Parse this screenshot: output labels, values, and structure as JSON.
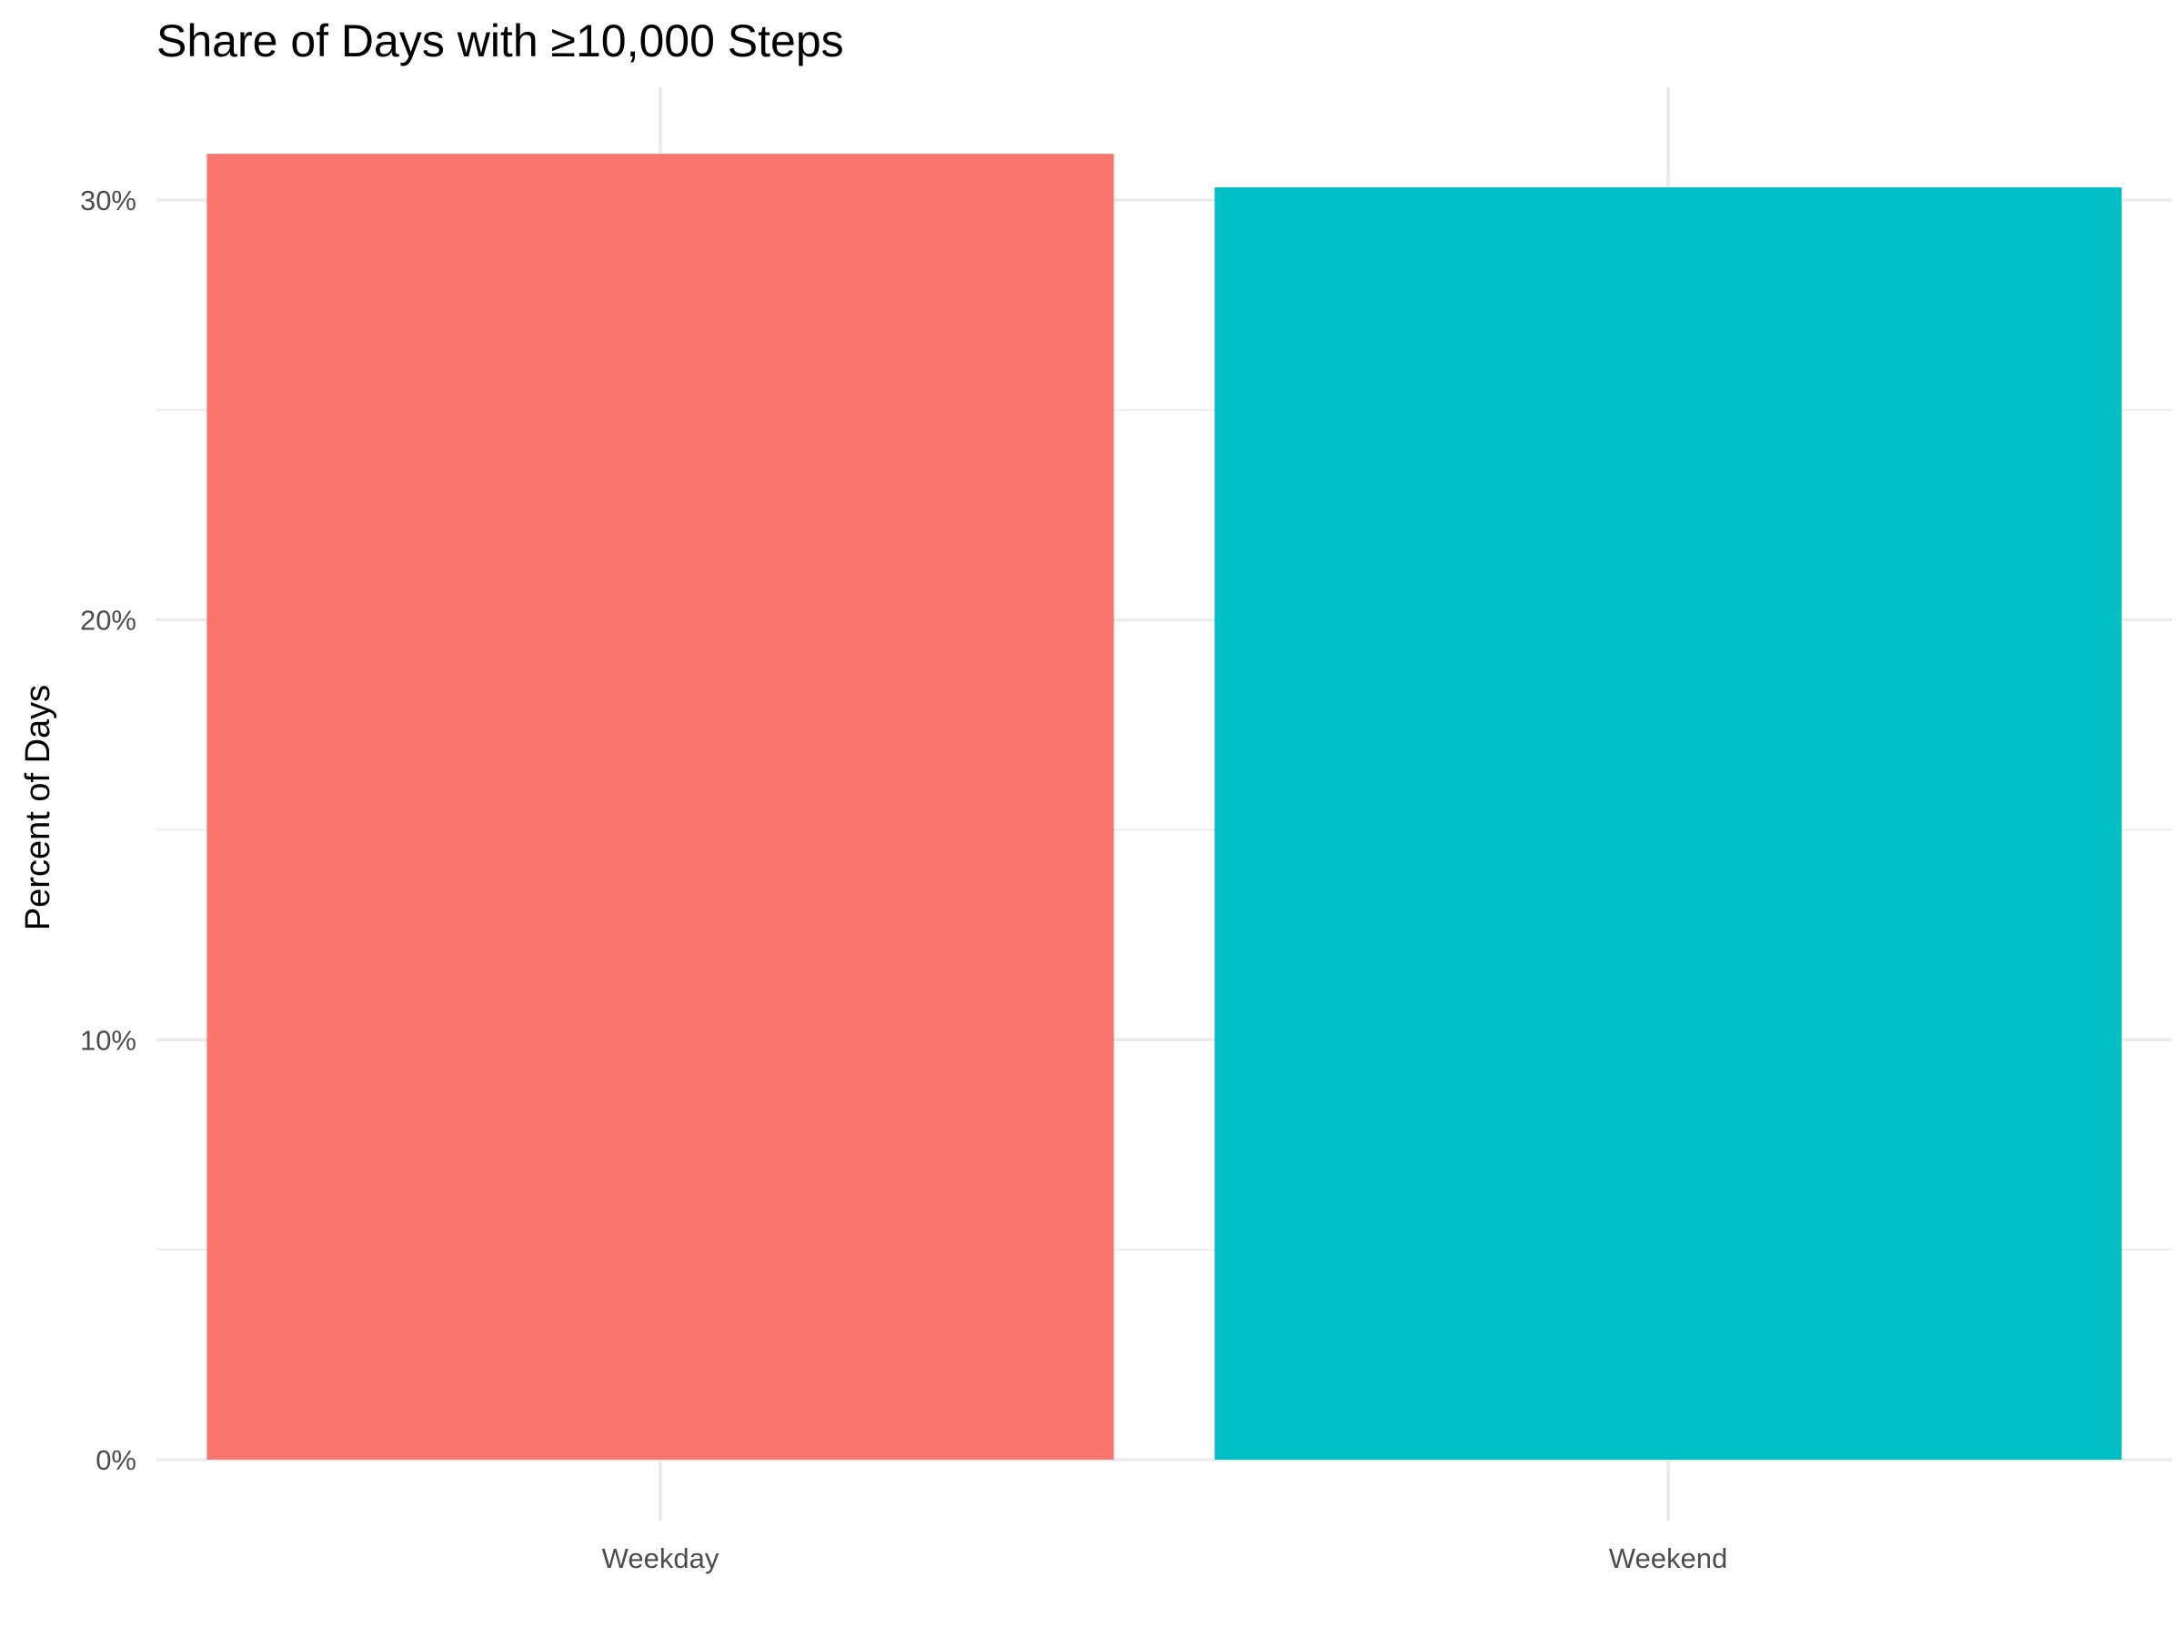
{
  "chart_data": {
    "type": "bar",
    "title": "Share of Days with ≥10,000 Steps",
    "xlabel": "",
    "ylabel": "Percent of Days",
    "categories": [
      "Weekday",
      "Weekend"
    ],
    "values": [
      31.1,
      30.3
    ],
    "colors": [
      "#F8766D",
      "#00BFC4"
    ],
    "ylim": [
      0,
      32.4
    ],
    "yticks": [
      0,
      10,
      20,
      30
    ],
    "ytick_labels": [
      "0%",
      "10%",
      "20%",
      "30%"
    ],
    "y_minor_ticks": [
      5,
      15,
      25
    ],
    "grid": true,
    "legend": "none"
  }
}
